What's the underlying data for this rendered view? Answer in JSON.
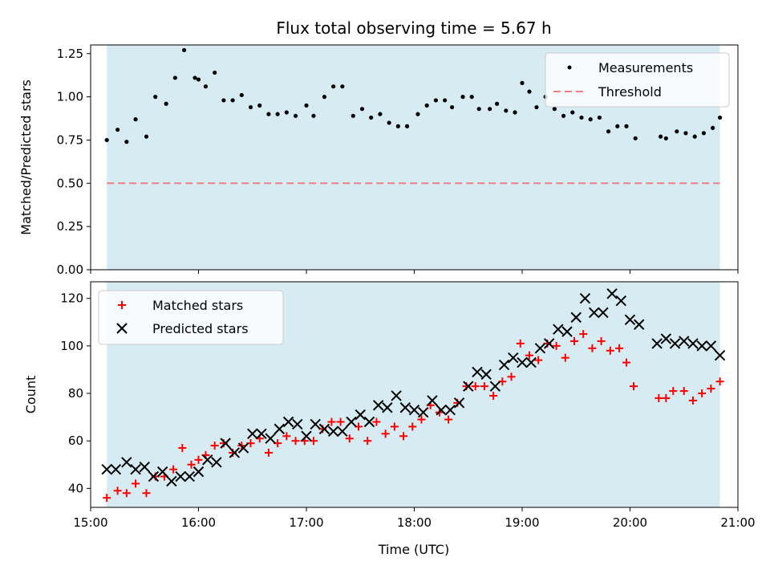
{
  "chart_data": [
    {
      "type": "scatter",
      "title": "Flux total observing time = 5.67 h",
      "ylabel": "Matched/Predicted stars",
      "ylim": [
        0,
        1.3
      ],
      "yticks": [
        "0.00",
        "0.25",
        "0.50",
        "0.75",
        "1.00",
        "1.25"
      ],
      "xlim": [
        "15:00",
        "21:00"
      ],
      "shaded_span": [
        "15:09",
        "20:50"
      ],
      "threshold": 0.5,
      "legend_position": "top-right",
      "legend": [
        "Measurements",
        "Threshold"
      ],
      "colors": {
        "measurements": "#000000",
        "threshold": "#f08080",
        "span": "#add8e6"
      },
      "series": [
        {
          "name": "Measurements",
          "points": [
            [
              "15:09",
              0.75
            ],
            [
              "15:15",
              0.81
            ],
            [
              "15:20",
              0.74
            ],
            [
              "15:25",
              0.87
            ],
            [
              "15:31",
              0.77
            ],
            [
              "15:36",
              1.0
            ],
            [
              "15:42",
              0.96
            ],
            [
              "15:47",
              1.11
            ],
            [
              "15:52",
              1.27
            ],
            [
              "15:58",
              1.11
            ],
            [
              "16:00",
              1.1
            ],
            [
              "16:04",
              1.06
            ],
            [
              "16:09",
              1.14
            ],
            [
              "16:14",
              0.98
            ],
            [
              "16:19",
              0.98
            ],
            [
              "16:24",
              1.01
            ],
            [
              "16:29",
              0.94
            ],
            [
              "16:34",
              0.95
            ],
            [
              "16:39",
              0.9
            ],
            [
              "16:44",
              0.9
            ],
            [
              "16:49",
              0.91
            ],
            [
              "16:54",
              0.89
            ],
            [
              "17:00",
              0.95
            ],
            [
              "17:04",
              0.89
            ],
            [
              "17:10",
              1.0
            ],
            [
              "17:15",
              1.06
            ],
            [
              "17:20",
              1.06
            ],
            [
              "17:26",
              0.89
            ],
            [
              "17:31",
              0.93
            ],
            [
              "17:36",
              0.88
            ],
            [
              "17:41",
              0.9
            ],
            [
              "17:46",
              0.85
            ],
            [
              "17:51",
              0.83
            ],
            [
              "17:56",
              0.83
            ],
            [
              "18:02",
              0.9
            ],
            [
              "18:07",
              0.95
            ],
            [
              "18:12",
              0.98
            ],
            [
              "18:17",
              0.98
            ],
            [
              "18:21",
              0.94
            ],
            [
              "18:27",
              1.0
            ],
            [
              "18:32",
              1.0
            ],
            [
              "18:36",
              0.93
            ],
            [
              "18:42",
              0.93
            ],
            [
              "18:46",
              0.96
            ],
            [
              "18:51",
              0.92
            ],
            [
              "18:56",
              0.91
            ],
            [
              "19:00",
              1.08
            ],
            [
              "19:04",
              1.03
            ],
            [
              "19:08",
              0.94
            ],
            [
              "19:13",
              1.0
            ],
            [
              "19:18",
              0.93
            ],
            [
              "19:23",
              0.89
            ],
            [
              "19:28",
              0.91
            ],
            [
              "19:33",
              0.88
            ],
            [
              "19:38",
              0.87
            ],
            [
              "19:43",
              0.88
            ],
            [
              "19:48",
              0.8
            ],
            [
              "19:53",
              0.83
            ],
            [
              "19:58",
              0.83
            ],
            [
              "20:03",
              0.76
            ],
            [
              "20:17",
              0.77
            ],
            [
              "20:20",
              0.76
            ],
            [
              "20:26",
              0.8
            ],
            [
              "20:31",
              0.79
            ],
            [
              "20:36",
              0.77
            ],
            [
              "20:41",
              0.79
            ],
            [
              "20:46",
              0.82
            ],
            [
              "20:50",
              0.88
            ]
          ]
        }
      ]
    },
    {
      "type": "scatter",
      "xlabel": "Time (UTC)",
      "ylabel": "Count",
      "ylim": [
        32,
        127
      ],
      "yticks": [
        "40",
        "60",
        "80",
        "100",
        "120"
      ],
      "xlim": [
        "15:00",
        "21:00"
      ],
      "xticks": [
        "15:00",
        "16:00",
        "17:00",
        "18:00",
        "19:00",
        "20:00",
        "21:00"
      ],
      "shaded_span": [
        "15:09",
        "20:50"
      ],
      "legend_position": "top-left",
      "legend": [
        "Matched stars",
        "Predicted stars"
      ],
      "colors": {
        "matched": "#ff0000",
        "predicted": "#000000",
        "span": "#add8e6"
      },
      "series": [
        {
          "name": "Matched stars",
          "points": [
            [
              "15:09",
              36
            ],
            [
              "15:15",
              39
            ],
            [
              "15:20",
              38
            ],
            [
              "15:25",
              42
            ],
            [
              "15:31",
              38
            ],
            [
              "15:36",
              45
            ],
            [
              "15:41",
              45
            ],
            [
              "15:46",
              48
            ],
            [
              "15:51",
              57
            ],
            [
              "15:56",
              50
            ],
            [
              "16:00",
              52
            ],
            [
              "16:04",
              54
            ],
            [
              "16:09",
              58
            ],
            [
              "16:14",
              59
            ],
            [
              "16:19",
              55
            ],
            [
              "16:24",
              58
            ],
            [
              "16:29",
              59
            ],
            [
              "16:34",
              61
            ],
            [
              "16:39",
              55
            ],
            [
              "16:44",
              59
            ],
            [
              "16:49",
              62
            ],
            [
              "16:54",
              60
            ],
            [
              "16:59",
              60
            ],
            [
              "17:04",
              60
            ],
            [
              "17:09",
              65
            ],
            [
              "17:14",
              68
            ],
            [
              "17:19",
              68
            ],
            [
              "17:24",
              61
            ],
            [
              "17:29",
              66
            ],
            [
              "17:34",
              60
            ],
            [
              "17:39",
              68
            ],
            [
              "17:44",
              63
            ],
            [
              "17:49",
              66
            ],
            [
              "17:54",
              62
            ],
            [
              "17:59",
              66
            ],
            [
              "18:04",
              69
            ],
            [
              "18:09",
              75
            ],
            [
              "18:14",
              72
            ],
            [
              "18:19",
              69
            ],
            [
              "18:24",
              76
            ],
            [
              "18:29",
              83
            ],
            [
              "18:34",
              83
            ],
            [
              "18:39",
              83
            ],
            [
              "18:44",
              79
            ],
            [
              "18:49",
              85
            ],
            [
              "18:54",
              87
            ],
            [
              "18:59",
              101
            ],
            [
              "19:04",
              96
            ],
            [
              "19:09",
              94
            ],
            [
              "19:14",
              101
            ],
            [
              "19:19",
              100
            ],
            [
              "19:24",
              95
            ],
            [
              "19:29",
              102
            ],
            [
              "19:34",
              105
            ],
            [
              "19:39",
              99
            ],
            [
              "19:44",
              102
            ],
            [
              "19:49",
              98
            ],
            [
              "19:54",
              99
            ],
            [
              "19:58",
              93
            ],
            [
              "20:02",
              83
            ],
            [
              "20:16",
              78
            ],
            [
              "20:20",
              78
            ],
            [
              "20:24",
              81
            ],
            [
              "20:30",
              81
            ],
            [
              "20:35",
              77
            ],
            [
              "20:40",
              80
            ],
            [
              "20:45",
              82
            ],
            [
              "20:50",
              85
            ]
          ]
        },
        {
          "name": "Predicted stars",
          "points": [
            [
              "15:09",
              48
            ],
            [
              "15:14",
              48
            ],
            [
              "15:20",
              51
            ],
            [
              "15:25",
              48
            ],
            [
              "15:30",
              49
            ],
            [
              "15:35",
              45
            ],
            [
              "15:40",
              47
            ],
            [
              "15:45",
              43
            ],
            [
              "15:50",
              45
            ],
            [
              "15:55",
              45
            ],
            [
              "16:00",
              47
            ],
            [
              "16:05",
              52
            ],
            [
              "16:10",
              51
            ],
            [
              "16:15",
              59
            ],
            [
              "16:20",
              55
            ],
            [
              "16:25",
              57
            ],
            [
              "16:30",
              63
            ],
            [
              "16:35",
              63
            ],
            [
              "16:40",
              61
            ],
            [
              "16:45",
              65
            ],
            [
              "16:50",
              68
            ],
            [
              "16:55",
              67
            ],
            [
              "17:00",
              62
            ],
            [
              "17:05",
              67
            ],
            [
              "17:10",
              65
            ],
            [
              "17:15",
              64
            ],
            [
              "17:20",
              64
            ],
            [
              "17:25",
              68
            ],
            [
              "17:30",
              71
            ],
            [
              "17:35",
              68
            ],
            [
              "17:40",
              75
            ],
            [
              "17:45",
              74
            ],
            [
              "17:50",
              79
            ],
            [
              "17:55",
              74
            ],
            [
              "18:00",
              73
            ],
            [
              "18:05",
              72
            ],
            [
              "18:10",
              77
            ],
            [
              "18:15",
              73
            ],
            [
              "18:20",
              73
            ],
            [
              "18:25",
              76
            ],
            [
              "18:30",
              83
            ],
            [
              "18:35",
              89
            ],
            [
              "18:40",
              88
            ],
            [
              "18:45",
              83
            ],
            [
              "18:50",
              92
            ],
            [
              "18:55",
              95
            ],
            [
              "19:00",
              93
            ],
            [
              "19:05",
              93
            ],
            [
              "19:10",
              99
            ],
            [
              "19:15",
              101
            ],
            [
              "19:20",
              107
            ],
            [
              "19:25",
              106
            ],
            [
              "19:30",
              112
            ],
            [
              "19:35",
              120
            ],
            [
              "19:40",
              114
            ],
            [
              "19:45",
              114
            ],
            [
              "19:50",
              122
            ],
            [
              "19:55",
              119
            ],
            [
              "20:00",
              111
            ],
            [
              "20:05",
              109
            ],
            [
              "20:15",
              101
            ],
            [
              "20:20",
              103
            ],
            [
              "20:25",
              101
            ],
            [
              "20:30",
              102
            ],
            [
              "20:35",
              101
            ],
            [
              "20:40",
              100
            ],
            [
              "20:45",
              100
            ],
            [
              "20:50",
              96
            ]
          ]
        }
      ]
    }
  ]
}
